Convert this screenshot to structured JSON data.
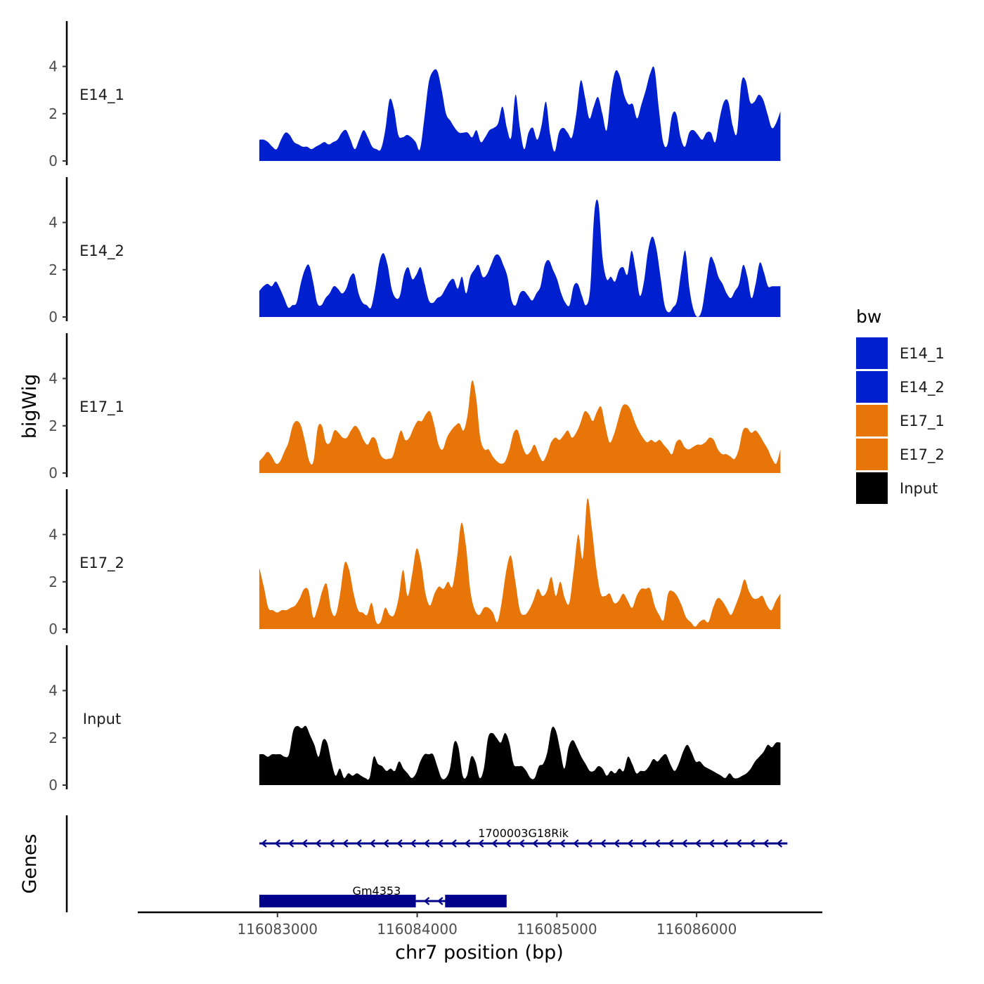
{
  "chart_data": {
    "type": "area",
    "title": "",
    "chromosome": "chr7",
    "xlabel": "chr7 position (bp)",
    "ylabel": "bigWig",
    "genes_axis_label": "Genes",
    "xlim": [
      116082000,
      116086900
    ],
    "ylim": [
      0,
      5.8
    ],
    "x_ticks": [
      116083000,
      116084000,
      116085000,
      116086000
    ],
    "x_tick_labels": [
      "116083000",
      "116084000",
      "116085000",
      "116086000"
    ],
    "y_ticks": [
      0,
      2,
      4
    ],
    "y_tick_labels": [
      "0",
      "2",
      "4"
    ],
    "x_start": 116082870,
    "x_end": 116086600,
    "legend": {
      "title": "bw",
      "entries": [
        {
          "label": "E14_1",
          "color": "#0020d0"
        },
        {
          "label": "E14_2",
          "color": "#0020d0"
        },
        {
          "label": "E17_1",
          "color": "#e87507"
        },
        {
          "label": "E17_2",
          "color": "#e87507"
        },
        {
          "label": "Input",
          "color": "#000000"
        }
      ]
    },
    "series": [
      {
        "name": "E14_1",
        "color": "#0020d0",
        "values": [
          0.9,
          0.9,
          0.8,
          0.6,
          0.5,
          0.9,
          1.2,
          1.1,
          0.8,
          0.7,
          0.6,
          0.6,
          0.5,
          0.6,
          0.7,
          0.8,
          0.7,
          0.8,
          0.9,
          1.2,
          1.3,
          0.9,
          0.5,
          0.9,
          1.3,
          1.0,
          0.6,
          0.5,
          0.5,
          1.3,
          2.6,
          2.2,
          1.1,
          1.0,
          1.1,
          1.0,
          0.8,
          0.5,
          1.8,
          3.3,
          3.8,
          3.8,
          3.0,
          2.0,
          1.7,
          1.4,
          1.2,
          1.2,
          1.2,
          1.0,
          1.3,
          0.8,
          1.0,
          1.3,
          1.4,
          1.6,
          2.3,
          1.4,
          1.0,
          2.8,
          1.4,
          0.5,
          1.2,
          1.4,
          0.9,
          1.5,
          2.5,
          1.1,
          0.4,
          1.2,
          1.4,
          1.2,
          1.0,
          2.0,
          3.4,
          2.7,
          1.8,
          2.3,
          2.7,
          2.0,
          1.3,
          2.9,
          3.8,
          3.6,
          2.8,
          2.4,
          2.4,
          1.8,
          2.4,
          3.0,
          3.7,
          3.9,
          2.2,
          0.8,
          0.7,
          1.9,
          2.0,
          1.0,
          0.6,
          1.2,
          1.3,
          1.1,
          0.9,
          1.2,
          1.2,
          0.8,
          1.8,
          2.5,
          2.5,
          1.5,
          1.2,
          3.3,
          3.4,
          2.5,
          2.5,
          2.8,
          2.6,
          2.0,
          1.4,
          1.6,
          2.1
        ]
      },
      {
        "name": "E14_2",
        "color": "#0020d0",
        "values": [
          1.1,
          1.3,
          1.4,
          1.3,
          1.5,
          1.2,
          0.8,
          0.4,
          0.5,
          0.6,
          1.4,
          2.0,
          2.2,
          1.5,
          0.6,
          0.5,
          0.8,
          1.0,
          1.3,
          1.2,
          1.0,
          1.2,
          1.7,
          1.8,
          1.0,
          0.6,
          0.5,
          0.4,
          1.2,
          2.3,
          2.7,
          2.2,
          1.2,
          0.8,
          0.9,
          1.8,
          2.1,
          1.6,
          1.8,
          2.1,
          1.4,
          0.7,
          0.6,
          0.8,
          0.9,
          1.2,
          1.5,
          1.6,
          1.2,
          1.7,
          1.0,
          1.7,
          2.0,
          2.2,
          1.7,
          1.8,
          2.2,
          2.6,
          2.6,
          2.2,
          1.7,
          0.7,
          0.5,
          1.0,
          1.1,
          0.9,
          0.7,
          1.0,
          1.3,
          2.2,
          2.4,
          2.0,
          1.6,
          1.0,
          0.6,
          0.5,
          1.3,
          1.4,
          0.9,
          0.5,
          1.2,
          4.4,
          4.8,
          2.5,
          1.6,
          1.7,
          1.5,
          2.0,
          2.1,
          1.8,
          2.8,
          2.0,
          0.9,
          1.5,
          2.8,
          3.4,
          2.9,
          1.7,
          0.5,
          0.2,
          0.4,
          0.7,
          1.9,
          2.8,
          1.2,
          0.3,
          0.0,
          0.3,
          1.4,
          2.5,
          2.3,
          1.7,
          1.4,
          1.0,
          0.8,
          1.1,
          1.4,
          2.2,
          1.7,
          0.8,
          1.4,
          2.3,
          1.9,
          1.3,
          1.3,
          1.3,
          1.3
        ]
      },
      {
        "name": "E17_1",
        "color": "#e87507",
        "values": [
          0.5,
          0.7,
          0.9,
          0.7,
          0.4,
          0.5,
          0.9,
          1.3,
          2.0,
          2.2,
          2.0,
          1.3,
          0.5,
          0.5,
          1.9,
          2.0,
          1.3,
          1.3,
          1.8,
          1.7,
          1.5,
          1.5,
          1.8,
          2.0,
          1.8,
          1.4,
          1.2,
          1.5,
          1.4,
          0.8,
          0.6,
          0.6,
          0.7,
          1.3,
          1.8,
          1.4,
          1.5,
          1.9,
          2.2,
          2.2,
          2.5,
          2.6,
          2.0,
          1.2,
          1.0,
          1.5,
          1.8,
          2.0,
          2.1,
          1.8,
          2.5,
          3.9,
          3.2,
          1.5,
          1.0,
          1.0,
          0.7,
          0.5,
          0.4,
          0.5,
          1.0,
          1.7,
          1.8,
          1.2,
          0.8,
          0.9,
          1.2,
          0.8,
          0.5,
          0.8,
          1.3,
          1.5,
          1.4,
          1.6,
          1.8,
          1.5,
          1.7,
          2.1,
          2.6,
          2.5,
          2.2,
          2.6,
          2.8,
          2.0,
          1.3,
          1.6,
          2.2,
          2.8,
          2.9,
          2.7,
          2.2,
          1.8,
          1.5,
          1.3,
          1.4,
          1.3,
          1.4,
          1.2,
          1.0,
          0.8,
          1.3,
          1.4,
          1.1,
          1.0,
          1.1,
          1.2,
          1.2,
          1.3,
          1.5,
          1.4,
          1.0,
          0.8,
          0.8,
          0.7,
          0.6,
          1.0,
          1.8,
          1.9,
          1.7,
          1.8,
          1.6,
          1.3,
          1.0,
          0.6,
          0.4,
          1.0
        ]
      },
      {
        "name": "E17_2",
        "color": "#e87507",
        "values": [
          2.6,
          1.8,
          0.9,
          0.8,
          0.7,
          0.8,
          0.8,
          0.9,
          1.0,
          1.3,
          1.7,
          1.6,
          0.5,
          0.9,
          1.6,
          1.9,
          0.8,
          0.6,
          1.5,
          2.8,
          2.5,
          1.5,
          0.8,
          0.7,
          0.6,
          1.1,
          0.3,
          0.3,
          0.9,
          0.6,
          0.6,
          1.3,
          2.5,
          1.4,
          2.3,
          3.4,
          2.8,
          1.5,
          1.0,
          1.5,
          1.8,
          1.7,
          2.0,
          1.8,
          3.0,
          4.5,
          3.5,
          1.6,
          0.8,
          0.6,
          0.9,
          0.9,
          0.7,
          0.3,
          1.2,
          2.5,
          3.1,
          2.0,
          0.8,
          0.6,
          0.8,
          1.2,
          1.7,
          1.4,
          1.6,
          2.2,
          1.4,
          2.0,
          1.3,
          1.1,
          2.5,
          4.0,
          3.0,
          5.5,
          4.3,
          2.6,
          1.5,
          1.4,
          1.5,
          1.1,
          1.2,
          1.5,
          1.2,
          0.9,
          1.4,
          1.7,
          1.7,
          1.7,
          1.0,
          0.6,
          0.4,
          1.5,
          1.6,
          1.4,
          1.0,
          0.5,
          0.3,
          0.1,
          0.3,
          0.4,
          0.3,
          0.9,
          1.3,
          1.2,
          0.9,
          0.6,
          1.0,
          1.5,
          2.1,
          1.6,
          1.3,
          1.3,
          1.4,
          1.0,
          0.8,
          1.2,
          1.5
        ]
      },
      {
        "name": "Input",
        "color": "#000000",
        "values": [
          1.3,
          1.3,
          1.2,
          1.3,
          1.3,
          1.3,
          1.2,
          1.3,
          2.3,
          2.5,
          2.4,
          2.5,
          2.1,
          1.7,
          1.2,
          1.9,
          1.8,
          1.0,
          0.4,
          0.7,
          0.3,
          0.5,
          0.4,
          0.5,
          0.4,
          0.3,
          0.3,
          1.2,
          0.9,
          0.8,
          0.6,
          0.7,
          0.6,
          1.0,
          0.7,
          0.5,
          0.3,
          0.5,
          1.0,
          1.3,
          1.3,
          1.3,
          0.8,
          0.3,
          0.3,
          0.7,
          1.8,
          1.6,
          0.4,
          0.4,
          1.2,
          1.0,
          0.3,
          0.7,
          2.0,
          2.2,
          2.0,
          1.8,
          2.2,
          1.8,
          0.9,
          0.8,
          0.8,
          0.6,
          0.3,
          0.3,
          0.8,
          0.9,
          1.4,
          2.4,
          2.3,
          1.5,
          0.7,
          1.6,
          1.9,
          1.6,
          1.2,
          0.9,
          0.6,
          0.6,
          0.8,
          0.7,
          0.4,
          0.6,
          0.5,
          0.7,
          0.6,
          1.2,
          0.9,
          0.5,
          0.6,
          0.6,
          0.8,
          1.1,
          1.0,
          1.2,
          1.3,
          0.9,
          0.6,
          0.9,
          1.4,
          1.7,
          1.4,
          1.0,
          1.0,
          0.8,
          0.7,
          0.6,
          0.5,
          0.4,
          0.3,
          0.5,
          0.3,
          0.3,
          0.4,
          0.5,
          0.7,
          1.0,
          1.2,
          1.4,
          1.7,
          1.6,
          1.8,
          1.8
        ]
      }
    ],
    "genes": [
      {
        "name": "1700003G18Rik",
        "row": 1,
        "start": 116082870,
        "end": 116086650,
        "strand": "-",
        "exons": []
      },
      {
        "name": "Gm4353",
        "row": 2,
        "start": 116082870,
        "end": 116084640,
        "strand": "-",
        "exons": [
          [
            116082870,
            116083990
          ],
          [
            116084200,
            116084640
          ]
        ]
      }
    ]
  }
}
